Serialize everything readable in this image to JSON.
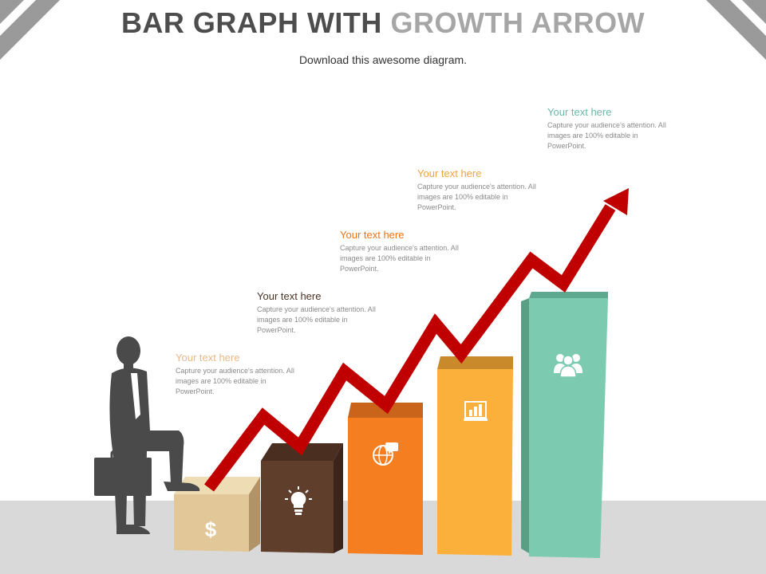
{
  "title": {
    "part1": "BAR GRAPH WITH",
    "part2": "GROWTH ARROW"
  },
  "subtitle": "Download this awesome diagram.",
  "steps": [
    {
      "heading": "Your text here",
      "body": "Capture your audience's attention. All images are 100% editable in PowerPoint.",
      "color": "#e2c898",
      "heading_color": "#e8b98a",
      "icon": "dollar-icon"
    },
    {
      "heading": "Your text here",
      "body": "Capture your audience's attention. All images are 100% editable in PowerPoint.",
      "color": "#603e2c",
      "heading_color": "#4a3426",
      "icon": "lightbulb-icon"
    },
    {
      "heading": "Your text here",
      "body": "Capture your audience's attention. All images are 100% editable in PowerPoint.",
      "color": "#f57e20",
      "heading_color": "#e8741a",
      "icon": "globe-chat-icon"
    },
    {
      "heading": "Your text here",
      "body": "Capture your audience's attention. All images are 100% editable in PowerPoint.",
      "color": "#fbb03b",
      "heading_color": "#f2a33a",
      "icon": "bar-chart-icon"
    },
    {
      "heading": "Your text here",
      "body": "Capture your audience's attention. All images are 100% editable in PowerPoint.",
      "color": "#7ccbb0",
      "heading_color": "#6bb9a3",
      "icon": "team-icon"
    }
  ],
  "arrow_color": "#c00000",
  "figure": "businessman-with-briefcase"
}
